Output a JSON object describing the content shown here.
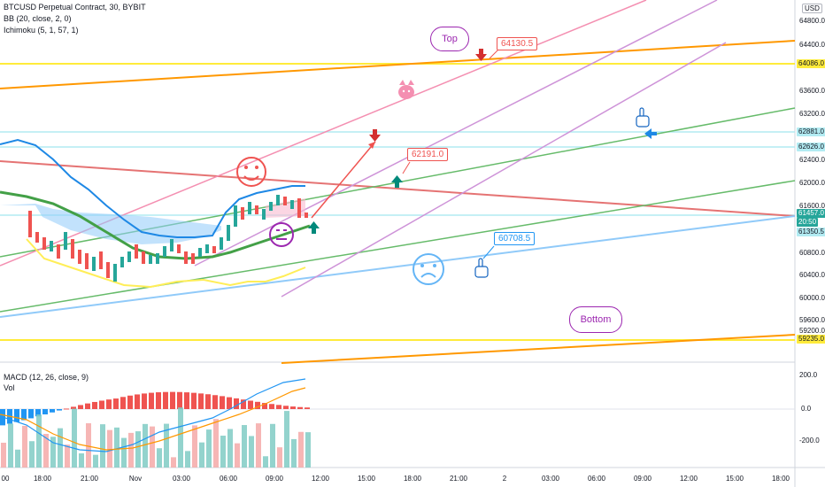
{
  "header": {
    "title": "BTCUSD Perpetual Contract, 30, BYBIT",
    "indicators": [
      "BB (20, close, 2, 0)",
      "Ichimoku (5, 1, 57, 1)"
    ]
  },
  "currency_button": "USD",
  "price_axis": {
    "labels": [
      "64800.0",
      "64400.0",
      "63600.0",
      "63200.0",
      "62400.0",
      "62000.0",
      "61600.0",
      "60800.0",
      "60400.0",
      "60000.0",
      "59600.0",
      "59200.0"
    ],
    "badges": [
      {
        "text": "64086.0",
        "bg": "#ffeb3b",
        "fg": "#131722"
      },
      {
        "text": "62881.0",
        "bg": "#b2ebf2",
        "fg": "#131722"
      },
      {
        "text": "62626.0",
        "bg": "#b2ebf2",
        "fg": "#131722"
      },
      {
        "text": "61457.0",
        "bg": "#26a69a",
        "fg": "#ffffff"
      },
      {
        "text": "20:50",
        "bg": "#26a69a",
        "fg": "#ffffff"
      },
      {
        "text": "61350.5",
        "bg": "#b2ebf2",
        "fg": "#131722"
      },
      {
        "text": "59235.0",
        "bg": "#ffeb3b",
        "fg": "#131722"
      }
    ]
  },
  "macd_panel": {
    "title": "MACD (12, 26, close, 9)",
    "vol_label": "Vol",
    "axis_labels": [
      "200.0",
      "0.0",
      "-200.0"
    ]
  },
  "time_axis": {
    "labels": [
      "00",
      "18:00",
      "21:00",
      "Nov",
      "03:00",
      "06:00",
      "09:00",
      "12:00",
      "15:00",
      "18:00",
      "21:00",
      "2",
      "03:00",
      "06:00",
      "09:00",
      "12:00",
      "15:00",
      "18:00"
    ]
  },
  "annotations": {
    "callouts": [
      {
        "text": "64130.5",
        "color": "#ef5350"
      },
      {
        "text": "62191.0",
        "color": "#ef5350"
      },
      {
        "text": "60708.5",
        "color": "#2196f3"
      }
    ],
    "bubbles": [
      {
        "text": "Top"
      },
      {
        "text": "Bottom"
      }
    ]
  },
  "colors": {
    "up": "#26a69a",
    "down": "#ef5350",
    "bb": "#1e88e5",
    "orange": "#ff9800",
    "yellow": "#ffeb3b",
    "green": "#4caf50",
    "pink": "#f48fb1",
    "violet": "#ce93d8",
    "blue": "#90caf9",
    "red": "#e57373"
  },
  "icons": [
    "smiley-face-icon",
    "neutral-face-icon",
    "sad-face-icon",
    "cat-face-icon",
    "pointing-hand-up-icon",
    "pointing-hand-down-icon",
    "arrow-up-icon",
    "arrow-down-icon"
  ]
}
